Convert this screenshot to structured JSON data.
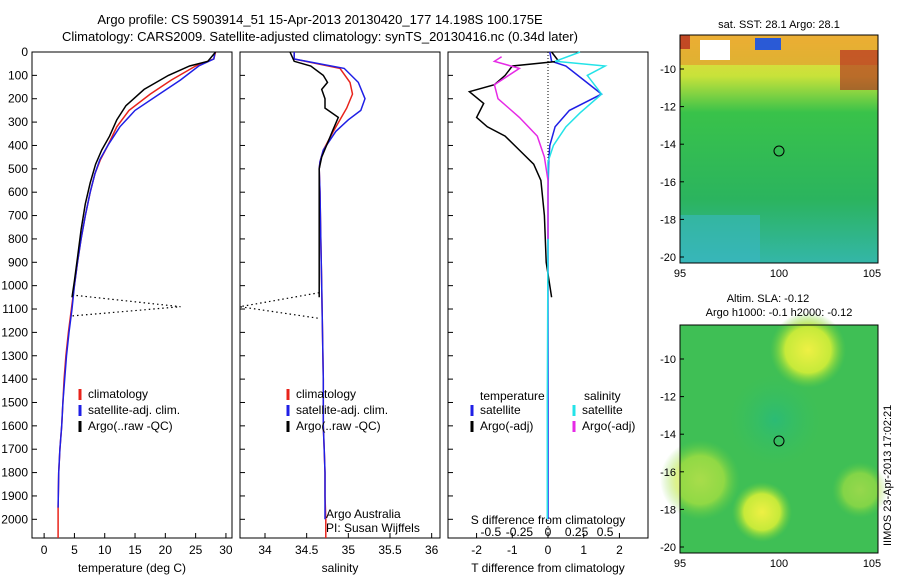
{
  "header": {
    "title_line1": "Argo profile: CS 5903914_51 15-Apr-2013 20130420_177 14.198S 100.175E",
    "title_line2": "Climatology: CARS2009. Satellite-adjusted climatology: synTS_20130416.nc (0.34d later)"
  },
  "stamp": "IIMOS 23-Apr-2013 17:02:21",
  "colors": {
    "climatology": "#e8231b",
    "satellite": "#1f1fe6",
    "argo": "#000000",
    "sat_salinity": "#24e3e8",
    "argo_adj": "#e62ae6"
  },
  "chart_data": [
    {
      "type": "line",
      "panel": "temperature",
      "xlabel": "temperature (deg C)",
      "ylabel": "",
      "xlim": [
        -2,
        31
      ],
      "ylim": [
        2080,
        0
      ],
      "xticks": [
        0,
        5,
        10,
        15,
        20,
        25,
        30
      ],
      "yticks": [
        0,
        100,
        200,
        300,
        400,
        500,
        600,
        700,
        800,
        900,
        1000,
        1100,
        1200,
        1300,
        1400,
        1500,
        1600,
        1700,
        1800,
        1900,
        2000
      ],
      "legend": [
        "climatology",
        "satellite-adj. clim.",
        "Argo(..raw -QC)"
      ],
      "series": [
        {
          "name": "climatology",
          "color": "climatology",
          "x": [
            28.3,
            28.0,
            25.0,
            21.0,
            17.5,
            14.0,
            12.0,
            10.5,
            9.3,
            8.4,
            7.6,
            6.8,
            6.1,
            5.5,
            5.0,
            4.5,
            4.0,
            3.6,
            3.3,
            3.1,
            2.9,
            2.6,
            2.4,
            2.3,
            2.3
          ],
          "y": [
            0,
            30,
            60,
            120,
            180,
            250,
            320,
            400,
            460,
            520,
            600,
            700,
            800,
            900,
            1000,
            1100,
            1200,
            1300,
            1400,
            1500,
            1600,
            1700,
            1800,
            1950,
            2080
          ]
        },
        {
          "name": "satellite-adj. clim.",
          "color": "satellite",
          "x": [
            28.2,
            28.0,
            25.5,
            22.5,
            19.0,
            15.0,
            12.5,
            10.5,
            9.2,
            8.4,
            7.6,
            6.8,
            6.1,
            5.5,
            5.0,
            4.6,
            4.1,
            3.7,
            3.4,
            3.1,
            2.9,
            2.6,
            2.4,
            2.3
          ],
          "y": [
            0,
            30,
            60,
            120,
            180,
            250,
            320,
            400,
            460,
            520,
            600,
            700,
            800,
            900,
            1000,
            1100,
            1200,
            1300,
            1400,
            1500,
            1600,
            1700,
            1800,
            1950
          ]
        },
        {
          "name": "Argo(..raw -QC)",
          "color": "argo",
          "x": [
            28.3,
            27.0,
            24.0,
            20.5,
            16.5,
            13.5,
            12.0,
            10.8,
            9.5,
            8.5,
            7.6,
            6.8,
            6.1,
            5.5,
            5.0,
            4.6
          ],
          "y": [
            0,
            40,
            60,
            100,
            160,
            230,
            290,
            360,
            420,
            480,
            560,
            650,
            760,
            880,
            980,
            1050
          ]
        },
        {
          "name": "bad-qc",
          "color": "argo",
          "dotted": true,
          "x": [
            4.6,
            22.5,
            4.5
          ],
          "y": [
            1040,
            1090,
            1130
          ]
        }
      ]
    },
    {
      "type": "line",
      "panel": "salinity",
      "xlabel": "salinity",
      "xlim": [
        33.7,
        36.1
      ],
      "ylim": [
        2080,
        0
      ],
      "xticks": [
        34,
        34.5,
        35,
        35.5,
        36
      ],
      "legend": [
        "climatology",
        "satellite-adj. clim.",
        "Argo(..raw -QC)"
      ],
      "note1": "Argo Australia",
      "note2": "PI: Susan Wijffels",
      "series": [
        {
          "name": "climatology",
          "color": "climatology",
          "x": [
            34.35,
            34.35,
            34.9,
            35.02,
            35.05,
            34.98,
            34.9,
            34.82,
            34.7,
            34.66,
            34.65,
            34.66,
            34.67,
            34.68,
            34.69,
            34.7,
            34.7,
            34.71,
            34.72,
            34.72,
            34.73,
            34.73
          ],
          "y": [
            0,
            30,
            70,
            130,
            180,
            240,
            290,
            340,
            420,
            470,
            500,
            600,
            800,
            1000,
            1200,
            1400,
            1600,
            1700,
            1800,
            1900,
            2000,
            2080
          ]
        },
        {
          "name": "satellite-adj. clim.",
          "color": "satellite",
          "x": [
            34.35,
            34.35,
            34.95,
            35.12,
            35.2,
            35.15,
            35.0,
            34.85,
            34.7,
            34.66,
            34.65,
            34.66,
            34.67,
            34.68,
            34.69,
            34.7,
            34.7,
            34.71,
            34.72,
            34.72,
            34.72
          ],
          "y": [
            0,
            30,
            70,
            130,
            200,
            250,
            290,
            340,
            420,
            470,
            500,
            600,
            800,
            1000,
            1200,
            1400,
            1600,
            1700,
            1800,
            1900,
            2000
          ]
        },
        {
          "name": "Argo(..raw -QC)",
          "color": "argo",
          "x": [
            34.3,
            34.35,
            34.55,
            34.7,
            34.75,
            34.68,
            34.72,
            34.72,
            34.88,
            34.82,
            34.75,
            34.68,
            34.65,
            34.65,
            34.65,
            34.65,
            34.65
          ],
          "y": [
            0,
            40,
            60,
            100,
            130,
            160,
            200,
            240,
            280,
            330,
            390,
            450,
            500,
            600,
            800,
            1000,
            1050
          ]
        },
        {
          "name": "bad-qc",
          "color": "argo",
          "dotted": true,
          "x": [
            34.65,
            33.7,
            34.65
          ],
          "y": [
            1030,
            1090,
            1140
          ]
        }
      ]
    },
    {
      "type": "line",
      "panel": "difference",
      "xlabel": "T difference from climatology",
      "top_label": "S difference from climatology",
      "xlim": [
        -2.8,
        2.8
      ],
      "ylim": [
        2080,
        0
      ],
      "xticks": [
        -2,
        -1,
        0,
        1,
        2
      ],
      "sticks": [
        "-0.5",
        "-0.25",
        "0",
        "0.25",
        "0.5"
      ],
      "legend_temperature": {
        "header": "temperature",
        "items": [
          "satellite",
          "Argo(-adj)"
        ]
      },
      "legend_salinity": {
        "header": "salinity",
        "items": [
          "satellite",
          "Argo(-adj)"
        ]
      },
      "series": [
        {
          "name": "satellite",
          "color": "satellite",
          "x": [
            0.05,
            0.1,
            0.5,
            1.0,
            1.5,
            0.6,
            0.2,
            0.05,
            0.02,
            0,
            0,
            0,
            0
          ],
          "y": [
            0,
            40,
            60,
            120,
            180,
            250,
            320,
            400,
            470,
            600,
            1000,
            1500,
            2000
          ]
        },
        {
          "name": "Argo(-adj)",
          "color": "argo",
          "x": [
            0.1,
            0.3,
            -1.0,
            -1.2,
            -1.5,
            -2.2,
            -1.8,
            -2.0,
            -1.7,
            -1.2,
            -0.8,
            -0.4,
            -0.2,
            -0.1,
            -0.05,
            0.1
          ],
          "y": [
            0,
            40,
            60,
            100,
            140,
            170,
            220,
            280,
            320,
            360,
            420,
            480,
            550,
            700,
            900,
            1050
          ]
        },
        {
          "name": "satellite",
          "color": "sat_salinity",
          "x": [
            0.9,
            0.2,
            1.6,
            1.1,
            1.5,
            0.9,
            0.5,
            0.15,
            0.0,
            0.0,
            -0.02,
            -0.02
          ],
          "y": [
            0,
            40,
            60,
            100,
            180,
            260,
            320,
            400,
            470,
            800,
            1500,
            2000
          ]
        },
        {
          "name": "Argo(-adj)",
          "color": "argo_adj",
          "x": [
            -1.3,
            -1.5,
            -0.8,
            -1.5,
            -1.4,
            -0.8,
            -0.3,
            -0.1,
            0.0,
            0.0
          ],
          "y": [
            20,
            40,
            70,
            140,
            200,
            280,
            360,
            450,
            550,
            800
          ]
        }
      ]
    }
  ],
  "maps": {
    "sst": {
      "title": "sat. SST: 28.1 Argo: 28.1",
      "yticks": [
        "-10",
        "-12",
        "-14",
        "-16",
        "-18",
        "-20"
      ],
      "xticks": [
        "95",
        "100",
        "105"
      ]
    },
    "sla": {
      "title1": "Altim. SLA: -0.12",
      "title2": "Argo h1000: -0.1 h2000: -0.12",
      "yticks": [
        "-10",
        "-12",
        "-14",
        "-16",
        "-18",
        "-20"
      ],
      "xticks": [
        "95",
        "100",
        "105"
      ]
    }
  }
}
